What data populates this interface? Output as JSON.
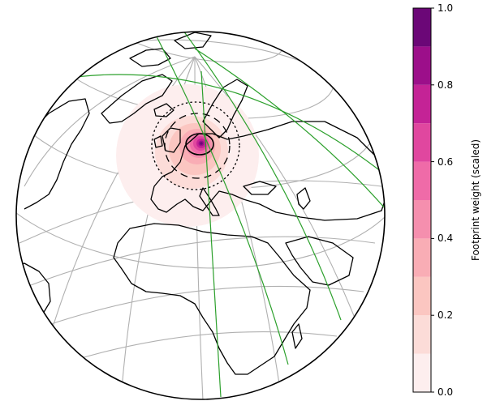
{
  "colorbar": {
    "label": "Footprint weight (scaled)",
    "ticks": [
      "0.0",
      "0.2",
      "0.4",
      "0.6",
      "0.8",
      "1.0"
    ],
    "range": [
      0.0,
      1.0
    ],
    "levels": [
      0.0,
      0.1,
      0.2,
      0.3,
      0.4,
      0.5,
      0.6,
      0.7,
      0.8,
      0.9,
      1.0
    ],
    "colors": [
      "#fdeeee",
      "#fcdcd8",
      "#fbc6c1",
      "#f9adb5",
      "#f58fae",
      "#ef6ba8",
      "#e0479f",
      "#c42396",
      "#9c0f8a",
      "#6b0777"
    ]
  },
  "map": {
    "projection": "orthographic",
    "center": "Europe / Adriatic",
    "graticule_color": "#b0b0b0",
    "coastline_color": "#000000",
    "track_color": "#2ca02c",
    "footprint": {
      "peak_weight": 1.0,
      "contour_styles": [
        "solid",
        "dashed",
        "dotted"
      ]
    }
  }
}
